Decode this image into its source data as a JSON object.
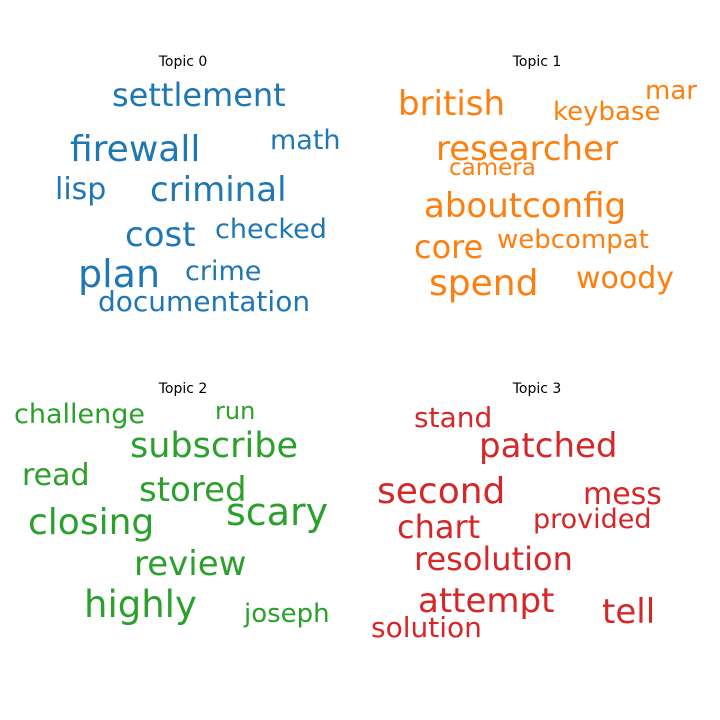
{
  "chart_data": [
    {
      "type": "wordcloud",
      "title": "Topic 0",
      "color": "#1f77b4",
      "words": [
        "settlement",
        "firewall",
        "math",
        "lisp",
        "criminal",
        "cost",
        "checked",
        "plan",
        "crime",
        "documentation"
      ]
    },
    {
      "type": "wordcloud",
      "title": "Topic 1",
      "color": "#ff7f0e",
      "words": [
        "british",
        "mar",
        "keybase",
        "researcher",
        "camera",
        "aboutconfig",
        "core",
        "webcompat",
        "spend",
        "woody"
      ]
    },
    {
      "type": "wordcloud",
      "title": "Topic 2",
      "color": "#2ca02c",
      "words": [
        "challenge",
        "run",
        "subscribe",
        "read",
        "stored",
        "closing",
        "scary",
        "review",
        "highly",
        "joseph"
      ]
    },
    {
      "type": "wordcloud",
      "title": "Topic 3",
      "color": "#d62728",
      "words": [
        "stand",
        "patched",
        "second",
        "mess",
        "chart",
        "provided",
        "resolution",
        "attempt",
        "tell",
        "solution"
      ]
    }
  ]
}
